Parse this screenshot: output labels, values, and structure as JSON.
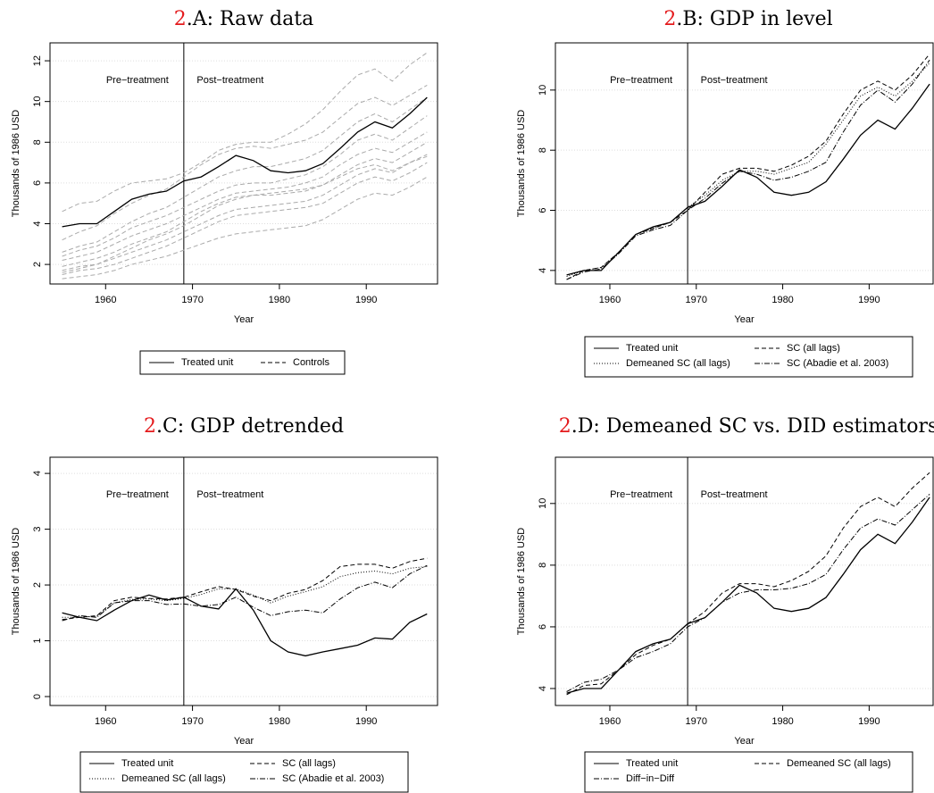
{
  "chart_data": [
    {
      "type": "line",
      "title_number": "2",
      "title": ".A: Raw data",
      "xlabel": "Year",
      "ylabel": "Thousands of 1986 USD",
      "annotations": [
        "Pre−treatment",
        "Post−treatment"
      ],
      "treatment_year": 1969,
      "x": [
        1955,
        1957,
        1959,
        1961,
        1963,
        1965,
        1967,
        1969,
        1971,
        1973,
        1975,
        1977,
        1979,
        1981,
        1983,
        1985,
        1987,
        1989,
        1991,
        1993,
        1995,
        1997
      ],
      "xlim": [
        1953.6,
        1998.2
      ],
      "xticks": [
        1960,
        1970,
        1980,
        1990
      ],
      "ylim": [
        1.04,
        12.88
      ],
      "yticks": [
        2,
        4,
        6,
        8,
        10,
        12
      ],
      "grid": true,
      "series": [
        {
          "name": "Treated unit",
          "color": "#000000",
          "linestyle": "solid",
          "values": [
            3.85,
            4.0,
            4.0,
            4.6,
            5.2,
            5.45,
            5.6,
            6.1,
            6.3,
            6.8,
            7.35,
            7.1,
            6.6,
            6.5,
            6.6,
            6.95,
            7.7,
            8.5,
            9.0,
            8.7,
            9.4,
            10.2
          ]
        },
        {
          "name": "Controls",
          "color": "#aaaaaa",
          "linestyle": "dashed",
          "values": [
            [
              4.6,
              5.0,
              5.1,
              5.6,
              6.0,
              6.1,
              6.2,
              6.5,
              7.0,
              7.6,
              7.9,
              8.0,
              8.0,
              8.4,
              8.9,
              9.6,
              10.5,
              11.3,
              11.6,
              11.0,
              11.8,
              12.4
            ],
            [
              3.2,
              3.6,
              3.9,
              4.5,
              5.0,
              5.4,
              5.7,
              6.3,
              6.9,
              7.4,
              7.7,
              7.8,
              7.7,
              7.9,
              8.1,
              8.5,
              9.2,
              9.9,
              10.2,
              9.8,
              10.3,
              10.8
            ],
            [
              2.6,
              2.9,
              3.1,
              3.6,
              4.1,
              4.5,
              4.8,
              5.3,
              5.8,
              6.3,
              6.6,
              6.8,
              6.8,
              7.0,
              7.2,
              7.6,
              8.3,
              9.0,
              9.4,
              9.0,
              9.6,
              10.2
            ],
            [
              2.4,
              2.7,
              2.9,
              3.3,
              3.8,
              4.1,
              4.4,
              4.8,
              5.2,
              5.6,
              5.9,
              6.0,
              6.0,
              6.2,
              6.4,
              6.8,
              7.4,
              8.1,
              8.4,
              8.1,
              8.7,
              9.3
            ],
            [
              2.2,
              2.4,
              2.6,
              3.0,
              3.4,
              3.7,
              4.0,
              4.4,
              4.8,
              5.2,
              5.5,
              5.6,
              5.7,
              5.8,
              6.0,
              6.3,
              6.9,
              7.4,
              7.7,
              7.5,
              8.0,
              8.5
            ],
            [
              1.9,
              2.1,
              2.3,
              2.6,
              3.0,
              3.3,
              3.6,
              4.1,
              4.6,
              5.0,
              5.3,
              5.4,
              5.4,
              5.5,
              5.6,
              5.9,
              6.4,
              6.9,
              7.2,
              7.0,
              7.5,
              8.0
            ],
            [
              1.7,
              1.9,
              2.0,
              2.3,
              2.6,
              2.9,
              3.2,
              3.6,
              4.0,
              4.4,
              4.7,
              4.8,
              4.9,
              5.0,
              5.1,
              5.4,
              5.9,
              6.4,
              6.7,
              6.5,
              7.0,
              7.4
            ],
            [
              1.5,
              1.7,
              1.8,
              2.0,
              2.3,
              2.6,
              2.9,
              3.3,
              3.7,
              4.1,
              4.4,
              4.5,
              4.6,
              4.7,
              4.8,
              5.0,
              5.5,
              6.0,
              6.3,
              6.1,
              6.5,
              7.0
            ],
            [
              1.3,
              1.4,
              1.5,
              1.7,
              2.0,
              2.2,
              2.4,
              2.7,
              3.0,
              3.3,
              3.5,
              3.6,
              3.7,
              3.8,
              3.9,
              4.2,
              4.7,
              5.2,
              5.5,
              5.4,
              5.8,
              6.3
            ],
            [
              1.6,
              1.8,
              2.0,
              2.4,
              2.8,
              3.2,
              3.5,
              3.9,
              4.4,
              4.9,
              5.2,
              5.4,
              5.5,
              5.6,
              5.7,
              5.9,
              6.3,
              6.7,
              6.9,
              6.6,
              7.0,
              7.3
            ]
          ]
        }
      ]
    },
    {
      "type": "line",
      "title_number": "2",
      "title": ".B: GDP in level",
      "xlabel": "Year",
      "ylabel": "Thousands of 1986 USD",
      "annotations": [
        "Pre−treatment",
        "Post−treatment"
      ],
      "treatment_year": 1969,
      "x": [
        1955,
        1957,
        1959,
        1961,
        1963,
        1965,
        1967,
        1969,
        1971,
        1973,
        1975,
        1977,
        1979,
        1981,
        1983,
        1985,
        1987,
        1989,
        1991,
        1993,
        1995,
        1997
      ],
      "xlim": [
        1953.7,
        1997.4
      ],
      "xticks": [
        1960,
        1970,
        1980,
        1990
      ],
      "ylim": [
        3.55,
        11.57
      ],
      "yticks": [
        4,
        6,
        8,
        10
      ],
      "grid": true,
      "series": [
        {
          "name": "Treated unit",
          "color": "#000000",
          "linestyle": "solid",
          "values": [
            3.85,
            4.0,
            4.0,
            4.6,
            5.2,
            5.45,
            5.6,
            6.1,
            6.3,
            6.8,
            7.35,
            7.1,
            6.6,
            6.5,
            6.6,
            6.95,
            7.7,
            8.5,
            9.0,
            8.7,
            9.4,
            10.2
          ]
        },
        {
          "name": "SC (all lags)",
          "color": "#000000",
          "linestyle": "dashed",
          "values": [
            3.7,
            4.0,
            4.1,
            4.6,
            5.2,
            5.4,
            5.6,
            6.0,
            6.6,
            7.2,
            7.4,
            7.4,
            7.3,
            7.5,
            7.8,
            8.3,
            9.2,
            10.0,
            10.3,
            10.0,
            10.5,
            11.2
          ]
        },
        {
          "name": "Demeaned SC (all lags)",
          "color": "#000000",
          "linestyle": "dotted",
          "values": [
            3.8,
            4.0,
            4.1,
            4.6,
            5.2,
            5.4,
            5.6,
            6.1,
            6.5,
            7.0,
            7.3,
            7.3,
            7.2,
            7.4,
            7.6,
            8.2,
            9.0,
            9.8,
            10.1,
            9.8,
            10.3,
            10.9
          ]
        },
        {
          "name": "SC (Abadie et al. 2003)",
          "color": "#000000",
          "linestyle": "dashdot",
          "values": [
            3.7,
            3.95,
            4.05,
            4.55,
            5.15,
            5.35,
            5.5,
            6.0,
            6.4,
            6.9,
            7.3,
            7.2,
            7.0,
            7.1,
            7.3,
            7.6,
            8.6,
            9.5,
            10.0,
            9.6,
            10.2,
            11.0
          ]
        }
      ]
    },
    {
      "type": "line",
      "title_number": "2",
      "title": ".C: GDP detrended",
      "xlabel": "Year",
      "ylabel": "Thousands of 1986 USD",
      "annotations": [
        "Pre−treatment",
        "Post−treatment"
      ],
      "treatment_year": 1969,
      "x": [
        1955,
        1957,
        1959,
        1961,
        1963,
        1965,
        1967,
        1969,
        1971,
        1973,
        1975,
        1977,
        1979,
        1981,
        1983,
        1985,
        1987,
        1989,
        1991,
        1993,
        1995,
        1997
      ],
      "xlim": [
        1953.6,
        1998.2
      ],
      "xticks": [
        1960,
        1970,
        1980,
        1990
      ],
      "ylim": [
        -0.16,
        4.29
      ],
      "yticks": [
        0,
        1,
        2,
        3,
        4
      ],
      "grid": true,
      "series": [
        {
          "name": "Treated unit",
          "color": "#000000",
          "linestyle": "solid",
          "values": [
            1.5,
            1.42,
            1.36,
            1.55,
            1.72,
            1.82,
            1.73,
            1.78,
            1.62,
            1.57,
            1.93,
            1.55,
            1.0,
            0.8,
            0.73,
            0.8,
            0.86,
            0.92,
            1.05,
            1.03,
            1.33,
            1.48
          ]
        },
        {
          "name": "SC (all lags)",
          "color": "#000000",
          "linestyle": "dashed",
          "values": [
            1.38,
            1.42,
            1.45,
            1.72,
            1.78,
            1.76,
            1.75,
            1.78,
            1.88,
            1.97,
            1.92,
            1.8,
            1.72,
            1.85,
            1.92,
            2.08,
            2.33,
            2.37,
            2.37,
            2.3,
            2.42,
            2.48
          ]
        },
        {
          "name": "Demeaned SC (all lags)",
          "color": "#000000",
          "linestyle": "dotted",
          "values": [
            1.42,
            1.42,
            1.44,
            1.68,
            1.74,
            1.75,
            1.72,
            1.76,
            1.83,
            1.93,
            1.93,
            1.82,
            1.68,
            1.8,
            1.88,
            1.97,
            2.15,
            2.22,
            2.25,
            2.2,
            2.3,
            2.33
          ]
        },
        {
          "name": "SC (Abadie et al. 2003)",
          "color": "#000000",
          "linestyle": "dashdot",
          "values": [
            1.36,
            1.45,
            1.42,
            1.68,
            1.72,
            1.72,
            1.65,
            1.66,
            1.62,
            1.65,
            1.78,
            1.6,
            1.45,
            1.52,
            1.55,
            1.5,
            1.75,
            1.95,
            2.05,
            1.95,
            2.2,
            2.35
          ]
        }
      ]
    },
    {
      "type": "line",
      "title_number": "2",
      "title": ".D: Demeaned SC vs. DID estimators",
      "xlabel": "Year",
      "ylabel": "Thousands of 1986 USD",
      "annotations": [
        "Pre−treatment",
        "Post−treatment"
      ],
      "treatment_year": 1969,
      "x": [
        1955,
        1957,
        1959,
        1961,
        1963,
        1965,
        1967,
        1969,
        1971,
        1973,
        1975,
        1977,
        1979,
        1981,
        1983,
        1985,
        1987,
        1989,
        1991,
        1993,
        1995,
        1997
      ],
      "xlim": [
        1953.7,
        1997.4
      ],
      "xticks": [
        1960,
        1970,
        1980,
        1990
      ],
      "ylim": [
        3.45,
        11.5
      ],
      "yticks": [
        4,
        6,
        8,
        10
      ],
      "grid": true,
      "series": [
        {
          "name": "Treated unit",
          "color": "#000000",
          "linestyle": "solid",
          "values": [
            3.85,
            4.0,
            4.0,
            4.6,
            5.2,
            5.45,
            5.6,
            6.1,
            6.3,
            6.8,
            7.35,
            7.1,
            6.6,
            6.5,
            6.6,
            6.95,
            7.7,
            8.5,
            9.0,
            8.7,
            9.4,
            10.2
          ]
        },
        {
          "name": "Demeaned SC (all lags)",
          "color": "#000000",
          "linestyle": "dashed",
          "values": [
            3.8,
            4.1,
            4.15,
            4.6,
            5.1,
            5.4,
            5.6,
            6.1,
            6.5,
            7.1,
            7.4,
            7.4,
            7.3,
            7.5,
            7.8,
            8.3,
            9.2,
            9.9,
            10.2,
            9.9,
            10.5,
            11.0
          ]
        },
        {
          "name": "Diff−in−Diff",
          "color": "#000000",
          "linestyle": "dashdot",
          "values": [
            3.9,
            4.2,
            4.3,
            4.6,
            5.0,
            5.2,
            5.45,
            6.0,
            6.3,
            6.8,
            7.1,
            7.2,
            7.2,
            7.25,
            7.4,
            7.7,
            8.5,
            9.2,
            9.5,
            9.3,
            9.8,
            10.3
          ]
        }
      ]
    }
  ]
}
